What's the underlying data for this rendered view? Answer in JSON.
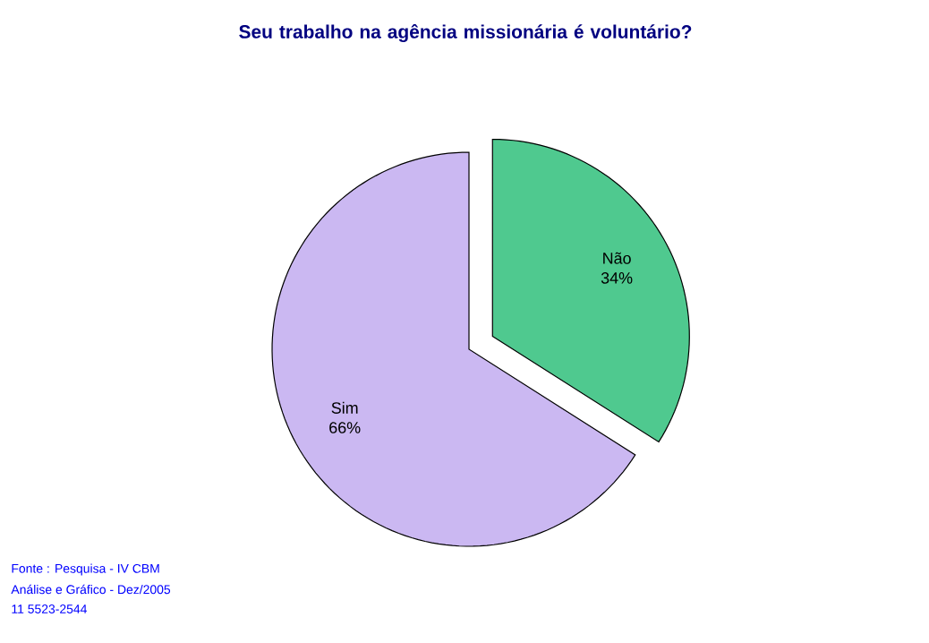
{
  "chart_data": {
    "type": "pie",
    "title": "Seu trabalho na agência missionária é voluntário?",
    "categories": [
      "Sim",
      "Não"
    ],
    "values": [
      66,
      34
    ],
    "value_labels": [
      "66%",
      "34%"
    ],
    "colors": [
      "#cbb8f2",
      "#4fc98f"
    ],
    "annotations": [
      "Fonte : Pesquisa - IV CBM",
      "Análise e Gráfico - Dez/2005",
      "11 5523-2544"
    ]
  }
}
